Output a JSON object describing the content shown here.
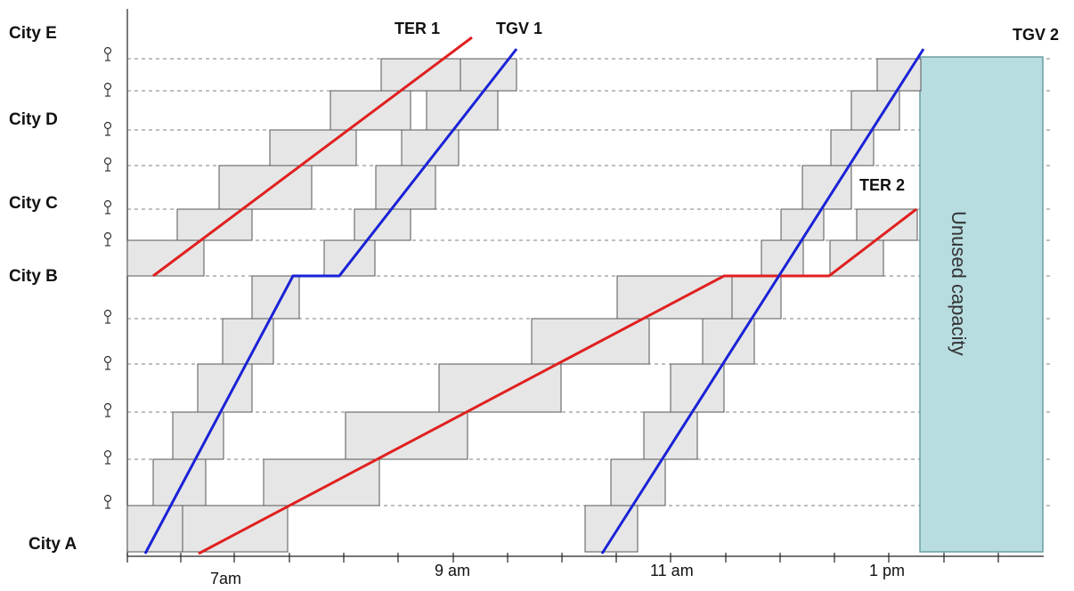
{
  "cities": [
    "City E",
    "City D",
    "City C",
    "City B",
    "City A"
  ],
  "trains": [
    {
      "name": "TER 1",
      "color": "#e02020"
    },
    {
      "name": "TGV 1",
      "color": "#1a22d6"
    },
    {
      "name": "TER 2",
      "color": "#e02020"
    },
    {
      "name": "TGV 2",
      "color": "#1a22d6"
    }
  ],
  "time_axis": [
    "7am",
    "9 am",
    "11 am",
    "1 pm"
  ],
  "unused_capacity": "Unused capacity",
  "colors": {
    "block_fill": "#e6e6e6",
    "unused_fill": "#b7dde1",
    "ter": "#e02020",
    "tgv": "#1a22d6"
  }
}
